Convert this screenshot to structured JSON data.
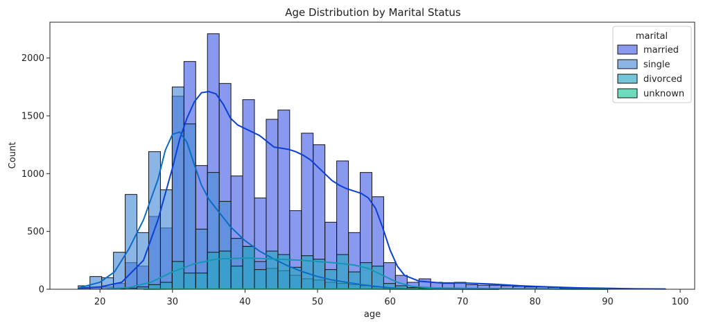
{
  "chart_data": {
    "type": "bar",
    "title": "Age Distribution by Marital Status",
    "xlabel": "age",
    "ylabel": "Count",
    "xlim": [
      13.1,
      102.0
    ],
    "ylim": [
      0,
      2310
    ],
    "x_ticks": [
      20,
      30,
      40,
      50,
      60,
      70,
      80,
      90,
      100
    ],
    "y_ticks": [
      0,
      500,
      1000,
      1500,
      2000
    ],
    "bin_edges": [
      17,
      18.62,
      20.24,
      21.86,
      23.48,
      25.1,
      26.72,
      28.34,
      29.96,
      31.58,
      33.2,
      34.82,
      36.44,
      38.06,
      39.68,
      41.3,
      42.92,
      44.54,
      46.16,
      47.78,
      49.4,
      51.02,
      52.64,
      54.26,
      55.88,
      57.5,
      59.12,
      60.74,
      62.36,
      63.98,
      65.6,
      67.22,
      68.84,
      70.46,
      72.08,
      73.7,
      75.32,
      76.94,
      78.56,
      80.18,
      81.8,
      83.42,
      85.04,
      86.66,
      88.28,
      89.9,
      91.52,
      93.14,
      94.76,
      96.38,
      98
    ],
    "legend": {
      "title": "marital",
      "position": "top-right"
    },
    "series": [
      {
        "name": "married",
        "color": "#4a63e6",
        "values": [
          10,
          15,
          20,
          50,
          230,
          200,
          630,
          530,
          1670,
          1970,
          1070,
          2210,
          1780,
          980,
          1640,
          790,
          1470,
          1550,
          680,
          1350,
          1250,
          580,
          1110,
          490,
          1010,
          800,
          230,
          120,
          60,
          90,
          60,
          50,
          60,
          40,
          35,
          35,
          30,
          25,
          20,
          20,
          15,
          10,
          10,
          10,
          8,
          5,
          5,
          3,
          3,
          3
        ]
      },
      {
        "name": "single",
        "color": "#4b8ed6",
        "values": [
          30,
          110,
          100,
          320,
          820,
          490,
          1190,
          860,
          1750,
          1430,
          520,
          1010,
          760,
          440,
          370,
          240,
          180,
          160,
          120,
          90,
          80,
          60,
          50,
          40,
          30,
          20,
          10,
          5,
          5,
          3,
          3,
          2,
          2,
          2,
          1,
          1,
          1,
          1,
          1,
          1,
          0,
          0,
          0,
          0,
          0,
          0,
          0,
          0,
          0,
          0
        ]
      },
      {
        "name": "divorced",
        "color": "#28a6c1",
        "values": [
          0,
          0,
          0,
          5,
          10,
          20,
          40,
          60,
          240,
          140,
          140,
          320,
          330,
          200,
          370,
          170,
          330,
          300,
          190,
          290,
          260,
          170,
          300,
          150,
          230,
          200,
          50,
          30,
          15,
          12,
          10,
          8,
          8,
          6,
          6,
          5,
          4,
          3,
          3,
          2,
          2,
          2,
          1,
          1,
          1,
          1,
          0,
          0,
          0,
          0
        ]
      },
      {
        "name": "unknown",
        "color": "#1fc99a",
        "values": [
          0,
          0,
          0,
          0,
          0,
          0,
          1,
          1,
          2,
          2,
          3,
          3,
          3,
          3,
          3,
          3,
          3,
          3,
          3,
          3,
          3,
          3,
          3,
          3,
          3,
          2,
          1,
          1,
          1,
          1,
          0,
          0,
          0,
          0,
          0,
          0,
          0,
          0,
          0,
          0,
          0,
          0,
          0,
          0,
          0,
          0,
          0,
          0,
          0,
          0
        ]
      }
    ],
    "kde": [
      {
        "name": "married",
        "color": "#0a3fd6",
        "points": [
          [
            17,
            8
          ],
          [
            20,
            20
          ],
          [
            23,
            60
          ],
          [
            26,
            250
          ],
          [
            28,
            600
          ],
          [
            30,
            1050
          ],
          [
            31,
            1300
          ],
          [
            32,
            1480
          ],
          [
            33,
            1620
          ],
          [
            34,
            1700
          ],
          [
            35,
            1710
          ],
          [
            36,
            1690
          ],
          [
            37,
            1600
          ],
          [
            38,
            1480
          ],
          [
            39,
            1420
          ],
          [
            40,
            1390
          ],
          [
            42,
            1330
          ],
          [
            43,
            1280
          ],
          [
            44,
            1230
          ],
          [
            45,
            1220
          ],
          [
            46,
            1210
          ],
          [
            47,
            1190
          ],
          [
            48,
            1160
          ],
          [
            49,
            1120
          ],
          [
            50,
            1060
          ],
          [
            51,
            1000
          ],
          [
            52,
            940
          ],
          [
            53,
            900
          ],
          [
            54,
            870
          ],
          [
            55,
            850
          ],
          [
            56,
            830
          ],
          [
            57,
            790
          ],
          [
            58,
            700
          ],
          [
            59,
            530
          ],
          [
            60,
            340
          ],
          [
            61,
            200
          ],
          [
            62,
            120
          ],
          [
            64,
            70
          ],
          [
            67,
            55
          ],
          [
            70,
            55
          ],
          [
            74,
            45
          ],
          [
            78,
            30
          ],
          [
            82,
            20
          ],
          [
            86,
            12
          ],
          [
            90,
            8
          ],
          [
            94,
            4
          ],
          [
            98,
            2
          ]
        ]
      },
      {
        "name": "single",
        "color": "#0a6cc5",
        "points": [
          [
            17,
            10
          ],
          [
            20,
            60
          ],
          [
            22,
            150
          ],
          [
            24,
            350
          ],
          [
            26,
            600
          ],
          [
            28,
            950
          ],
          [
            29,
            1200
          ],
          [
            30,
            1340
          ],
          [
            31,
            1360
          ],
          [
            32,
            1270
          ],
          [
            33,
            1080
          ],
          [
            34,
            900
          ],
          [
            35,
            780
          ],
          [
            36,
            700
          ],
          [
            37,
            620
          ],
          [
            38,
            540
          ],
          [
            40,
            420
          ],
          [
            42,
            330
          ],
          [
            44,
            260
          ],
          [
            46,
            200
          ],
          [
            48,
            150
          ],
          [
            50,
            110
          ],
          [
            52,
            80
          ],
          [
            54,
            60
          ],
          [
            56,
            40
          ],
          [
            58,
            25
          ],
          [
            60,
            12
          ],
          [
            62,
            5
          ],
          [
            65,
            2
          ],
          [
            70,
            1
          ],
          [
            75,
            0
          ]
        ]
      },
      {
        "name": "divorced",
        "color": "#1596b3",
        "points": [
          [
            21,
            2
          ],
          [
            24,
            15
          ],
          [
            27,
            60
          ],
          [
            30,
            150
          ],
          [
            33,
            220
          ],
          [
            36,
            260
          ],
          [
            40,
            270
          ],
          [
            44,
            262
          ],
          [
            48,
            250
          ],
          [
            52,
            230
          ],
          [
            55,
            210
          ],
          [
            57,
            180
          ],
          [
            59,
            120
          ],
          [
            61,
            60
          ],
          [
            63,
            25
          ],
          [
            66,
            12
          ],
          [
            70,
            8
          ],
          [
            75,
            5
          ],
          [
            80,
            3
          ],
          [
            85,
            1
          ],
          [
            90,
            0
          ]
        ]
      },
      {
        "name": "unknown",
        "color": "#17b889",
        "points": [
          [
            26,
            0
          ],
          [
            30,
            2
          ],
          [
            35,
            3
          ],
          [
            40,
            3
          ],
          [
            45,
            3
          ],
          [
            50,
            3
          ],
          [
            55,
            3
          ],
          [
            58,
            2
          ],
          [
            62,
            1
          ],
          [
            66,
            0
          ]
        ]
      }
    ]
  }
}
